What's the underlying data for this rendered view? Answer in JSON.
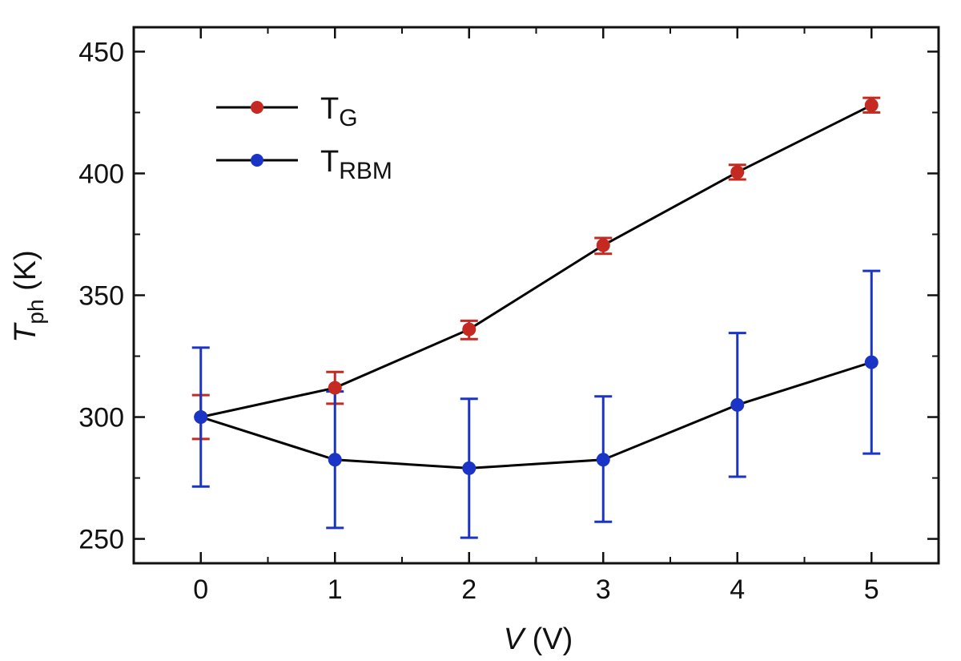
{
  "chart_data": {
    "type": "line",
    "x": [
      0,
      1,
      2,
      3,
      4,
      5
    ],
    "series": [
      {
        "name": "T",
        "subscript": "G",
        "color": "#c42a22",
        "values": [
          300,
          312,
          336,
          370.5,
          400.5,
          428
        ],
        "err_low": [
          291,
          305.5,
          332,
          367,
          397.5,
          425
        ],
        "err_high": [
          309,
          318.5,
          339.5,
          373.5,
          403.5,
          431
        ]
      },
      {
        "name": "T",
        "subscript": "RBM",
        "color": "#1a35c6",
        "values": [
          300,
          282.5,
          279,
          282.5,
          305,
          322.5
        ],
        "err_low": [
          271.5,
          254.5,
          250.5,
          257,
          275.5,
          285
        ],
        "err_high": [
          328.5,
          310.5,
          307.5,
          308.5,
          334.5,
          360
        ]
      }
    ],
    "xlabel": {
      "var": "V",
      "unit": " (V)"
    },
    "ylabel": {
      "var": "T",
      "sub": "ph",
      "unit": " (K)"
    },
    "xlim": [
      -0.5,
      5.5
    ],
    "ylim": [
      240,
      460
    ],
    "xticks": [
      0,
      1,
      2,
      3,
      4,
      5
    ],
    "yticks": [
      250,
      300,
      350,
      400,
      450
    ],
    "grid": false,
    "legend_position": "top-left",
    "line_color": "#000000"
  }
}
